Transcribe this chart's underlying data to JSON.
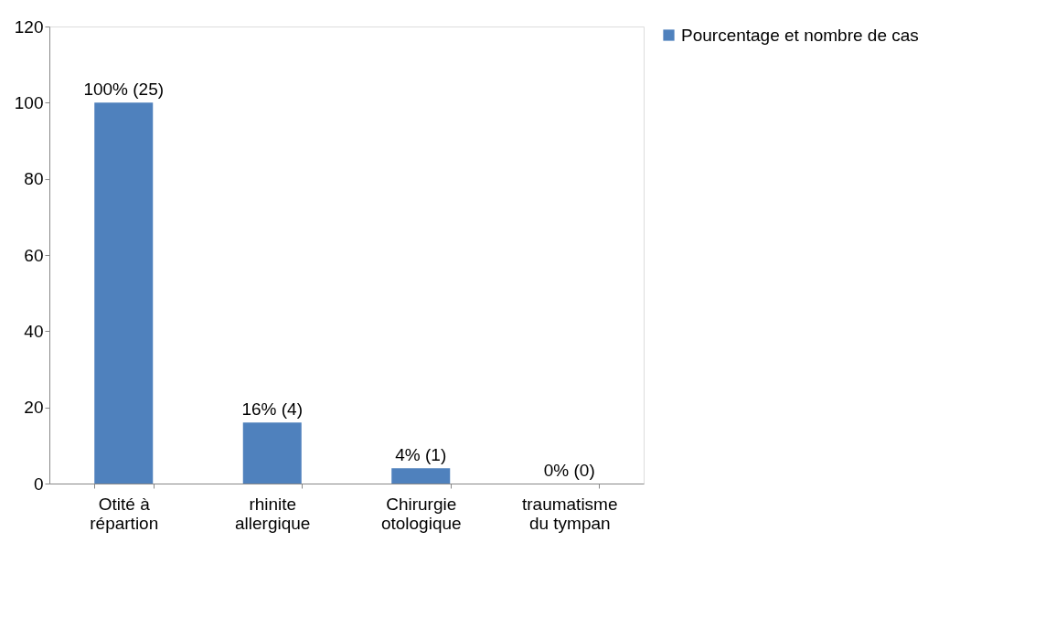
{
  "chart_data": {
    "type": "bar",
    "categories": [
      "Otité à répartion",
      "rhinite allergique",
      "Chirurgie otologique",
      "traumatisme du tympan"
    ],
    "series": [
      {
        "name": "Pourcentage et nombre de cas",
        "color": "#4f81bd",
        "values": [
          100,
          16,
          4,
          0
        ]
      }
    ],
    "value_labels": [
      "100%  (25)",
      "16%  (4)",
      "4%  (1)",
      "0%  (0)"
    ],
    "ylim": [
      0,
      120
    ],
    "yticks": [
      0,
      20,
      40,
      60,
      80,
      100,
      120
    ],
    "grid": false,
    "legend": "right"
  }
}
